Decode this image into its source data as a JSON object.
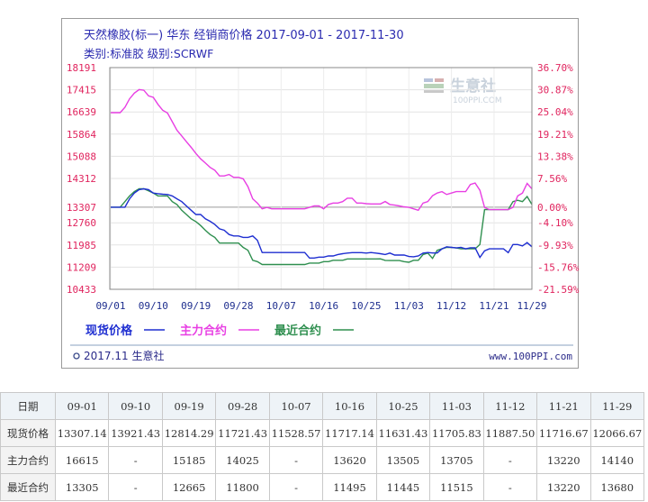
{
  "chart_data": {
    "type": "line",
    "title": "天然橡胶(标一) 华东 经销商价格 2017-09-01 - 2017-11-30",
    "subtitle": "类别:标准胶 级别:SCRWF",
    "watermark": {
      "name": "生意社",
      "url": "100PPI.COM"
    },
    "y_left_ticks": [
      18191,
      17415,
      16639,
      15864,
      15088,
      14312,
      13307,
      12760,
      11985,
      11209,
      10433
    ],
    "y_right_ticks": [
      "36.70%",
      "30.87%",
      "25.04%",
      "19.21%",
      "13.38%",
      "7.56%",
      "0.00%",
      "-4.10%",
      "-9.93%",
      "-15.76%",
      "-21.59%"
    ],
    "ylim": [
      10433,
      18191
    ],
    "baseline": 13307,
    "x_ticks": [
      "09/01",
      "09/10",
      "09/19",
      "09/28",
      "10/07",
      "10/16",
      "10/25",
      "11/03",
      "11/12",
      "11/21",
      "11/29"
    ],
    "x_range_days": [
      0,
      89
    ],
    "legend": [
      "现货价格",
      "主力合约",
      "最近合约"
    ],
    "series": [
      {
        "name": "现货价格",
        "color": "#1f2fd1",
        "points": [
          [
            0,
            13307
          ],
          [
            1,
            13307
          ],
          [
            2,
            13307
          ],
          [
            3,
            13307
          ],
          [
            4,
            13600
          ],
          [
            5,
            13800
          ],
          [
            6,
            13921
          ],
          [
            7,
            13950
          ],
          [
            8,
            13921
          ],
          [
            9,
            13800
          ],
          [
            10,
            13780
          ],
          [
            11,
            13760
          ],
          [
            12,
            13750
          ],
          [
            13,
            13700
          ],
          [
            14,
            13600
          ],
          [
            15,
            13500
          ],
          [
            16,
            13350
          ],
          [
            17,
            13200
          ],
          [
            18,
            13050
          ],
          [
            19,
            13050
          ],
          [
            20,
            12900
          ],
          [
            21,
            12814
          ],
          [
            22,
            12700
          ],
          [
            23,
            12550
          ],
          [
            24,
            12500
          ],
          [
            25,
            12350
          ],
          [
            26,
            12300
          ],
          [
            27,
            12300
          ],
          [
            28,
            12250
          ],
          [
            29,
            12250
          ],
          [
            30,
            12300
          ],
          [
            31,
            12150
          ],
          [
            32,
            11721
          ],
          [
            33,
            11721
          ],
          [
            34,
            11721
          ],
          [
            35,
            11721
          ],
          [
            36,
            11721
          ],
          [
            37,
            11721
          ],
          [
            38,
            11721
          ],
          [
            39,
            11721
          ],
          [
            40,
            11721
          ],
          [
            41,
            11721
          ],
          [
            42,
            11528
          ],
          [
            43,
            11528
          ],
          [
            44,
            11560
          ],
          [
            45,
            11560
          ],
          [
            46,
            11600
          ],
          [
            47,
            11600
          ],
          [
            48,
            11650
          ],
          [
            49,
            11680
          ],
          [
            50,
            11700
          ],
          [
            51,
            11717
          ],
          [
            52,
            11717
          ],
          [
            53,
            11717
          ],
          [
            54,
            11700
          ],
          [
            55,
            11720
          ],
          [
            56,
            11700
          ],
          [
            57,
            11680
          ],
          [
            58,
            11650
          ],
          [
            59,
            11700
          ],
          [
            60,
            11631
          ],
          [
            61,
            11631
          ],
          [
            62,
            11631
          ],
          [
            63,
            11580
          ],
          [
            64,
            11570
          ],
          [
            65,
            11600
          ],
          [
            66,
            11700
          ],
          [
            67,
            11720
          ],
          [
            68,
            11705
          ],
          [
            69,
            11705
          ],
          [
            70,
            11850
          ],
          [
            71,
            11920
          ],
          [
            72,
            11900
          ],
          [
            73,
            11880
          ],
          [
            74,
            11900
          ],
          [
            75,
            11850
          ],
          [
            76,
            11887
          ],
          [
            77,
            11887
          ],
          [
            78,
            11550
          ],
          [
            79,
            11780
          ],
          [
            80,
            11850
          ],
          [
            81,
            11850
          ],
          [
            82,
            11850
          ],
          [
            83,
            11850
          ],
          [
            84,
            11716
          ],
          [
            85,
            12000
          ],
          [
            86,
            12000
          ],
          [
            87,
            11950
          ],
          [
            88,
            12066
          ],
          [
            89,
            11920
          ]
        ]
      },
      {
        "name": "主力合约",
        "color": "#e83fe3",
        "points": [
          [
            0,
            16615
          ],
          [
            1,
            16615
          ],
          [
            2,
            16615
          ],
          [
            3,
            16800
          ],
          [
            4,
            17100
          ],
          [
            5,
            17300
          ],
          [
            6,
            17420
          ],
          [
            7,
            17400
          ],
          [
            8,
            17200
          ],
          [
            9,
            17150
          ],
          [
            10,
            16900
          ],
          [
            11,
            16700
          ],
          [
            12,
            16600
          ],
          [
            13,
            16300
          ],
          [
            14,
            16000
          ],
          [
            15,
            15800
          ],
          [
            16,
            15600
          ],
          [
            17,
            15400
          ],
          [
            18,
            15185
          ],
          [
            19,
            15000
          ],
          [
            20,
            14850
          ],
          [
            21,
            14700
          ],
          [
            22,
            14600
          ],
          [
            23,
            14400
          ],
          [
            24,
            14400
          ],
          [
            25,
            14450
          ],
          [
            26,
            14350
          ],
          [
            27,
            14350
          ],
          [
            28,
            14300
          ],
          [
            29,
            14025
          ],
          [
            30,
            13600
          ],
          [
            31,
            13450
          ],
          [
            32,
            13250
          ],
          [
            33,
            13300
          ],
          [
            34,
            13250
          ],
          [
            35,
            13250
          ],
          [
            36,
            13250
          ],
          [
            37,
            13250
          ],
          [
            38,
            13250
          ],
          [
            39,
            13250
          ],
          [
            40,
            13250
          ],
          [
            41,
            13250
          ],
          [
            42,
            13300
          ],
          [
            43,
            13350
          ],
          [
            44,
            13350
          ],
          [
            45,
            13250
          ],
          [
            46,
            13400
          ],
          [
            47,
            13450
          ],
          [
            48,
            13450
          ],
          [
            49,
            13500
          ],
          [
            50,
            13620
          ],
          [
            51,
            13620
          ],
          [
            52,
            13450
          ],
          [
            53,
            13450
          ],
          [
            54,
            13430
          ],
          [
            55,
            13420
          ],
          [
            56,
            13420
          ],
          [
            57,
            13420
          ],
          [
            58,
            13505
          ],
          [
            59,
            13400
          ],
          [
            60,
            13380
          ],
          [
            61,
            13350
          ],
          [
            62,
            13320
          ],
          [
            63,
            13300
          ],
          [
            64,
            13250
          ],
          [
            65,
            13200
          ],
          [
            66,
            13450
          ],
          [
            67,
            13500
          ],
          [
            68,
            13705
          ],
          [
            69,
            13800
          ],
          [
            70,
            13850
          ],
          [
            71,
            13750
          ],
          [
            72,
            13800
          ],
          [
            73,
            13850
          ],
          [
            74,
            13850
          ],
          [
            75,
            13850
          ],
          [
            76,
            14100
          ],
          [
            77,
            14150
          ],
          [
            78,
            13900
          ],
          [
            79,
            13300
          ],
          [
            80,
            13220
          ],
          [
            81,
            13220
          ],
          [
            82,
            13220
          ],
          [
            83,
            13220
          ],
          [
            84,
            13220
          ],
          [
            85,
            13300
          ],
          [
            86,
            13700
          ],
          [
            87,
            13800
          ],
          [
            88,
            14140
          ],
          [
            89,
            13950
          ]
        ]
      },
      {
        "name": "最近合约",
        "color": "#2f8f4f",
        "points": [
          [
            0,
            13305
          ],
          [
            1,
            13305
          ],
          [
            2,
            13305
          ],
          [
            3,
            13500
          ],
          [
            4,
            13700
          ],
          [
            5,
            13850
          ],
          [
            6,
            13950
          ],
          [
            7,
            13950
          ],
          [
            8,
            13880
          ],
          [
            9,
            13800
          ],
          [
            10,
            13700
          ],
          [
            11,
            13700
          ],
          [
            12,
            13700
          ],
          [
            13,
            13500
          ],
          [
            14,
            13400
          ],
          [
            15,
            13200
          ],
          [
            16,
            13050
          ],
          [
            17,
            12900
          ],
          [
            18,
            12800
          ],
          [
            19,
            12665
          ],
          [
            20,
            12500
          ],
          [
            21,
            12350
          ],
          [
            22,
            12250
          ],
          [
            23,
            12050
          ],
          [
            24,
            12050
          ],
          [
            25,
            12050
          ],
          [
            26,
            12050
          ],
          [
            27,
            12050
          ],
          [
            28,
            11900
          ],
          [
            29,
            11800
          ],
          [
            30,
            11450
          ],
          [
            31,
            11400
          ],
          [
            32,
            11300
          ],
          [
            33,
            11300
          ],
          [
            34,
            11300
          ],
          [
            35,
            11300
          ],
          [
            36,
            11300
          ],
          [
            37,
            11300
          ],
          [
            38,
            11300
          ],
          [
            39,
            11300
          ],
          [
            40,
            11300
          ],
          [
            41,
            11300
          ],
          [
            42,
            11350
          ],
          [
            43,
            11350
          ],
          [
            44,
            11350
          ],
          [
            45,
            11400
          ],
          [
            46,
            11400
          ],
          [
            47,
            11450
          ],
          [
            48,
            11450
          ],
          [
            49,
            11450
          ],
          [
            50,
            11495
          ],
          [
            51,
            11495
          ],
          [
            52,
            11495
          ],
          [
            53,
            11495
          ],
          [
            54,
            11495
          ],
          [
            55,
            11495
          ],
          [
            56,
            11495
          ],
          [
            57,
            11500
          ],
          [
            58,
            11445
          ],
          [
            59,
            11440
          ],
          [
            60,
            11440
          ],
          [
            61,
            11440
          ],
          [
            62,
            11400
          ],
          [
            63,
            11380
          ],
          [
            64,
            11450
          ],
          [
            65,
            11450
          ],
          [
            66,
            11650
          ],
          [
            67,
            11700
          ],
          [
            68,
            11515
          ],
          [
            69,
            11800
          ],
          [
            70,
            11850
          ],
          [
            71,
            11900
          ],
          [
            72,
            11900
          ],
          [
            73,
            11880
          ],
          [
            74,
            11850
          ],
          [
            75,
            11850
          ],
          [
            76,
            11850
          ],
          [
            77,
            11850
          ],
          [
            78,
            12000
          ],
          [
            79,
            13220
          ],
          [
            80,
            13220
          ],
          [
            81,
            13220
          ],
          [
            82,
            13220
          ],
          [
            83,
            13220
          ],
          [
            84,
            13220
          ],
          [
            85,
            13500
          ],
          [
            86,
            13550
          ],
          [
            87,
            13500
          ],
          [
            88,
            13680
          ],
          [
            89,
            13400
          ]
        ]
      }
    ]
  },
  "footer": {
    "left": "2017.11 生意社",
    "right": "www.100PPI.com"
  },
  "table": {
    "headers": [
      "日期",
      "09-01",
      "09-10",
      "09-19",
      "09-28",
      "10-07",
      "10-16",
      "10-25",
      "11-03",
      "11-12",
      "11-21",
      "11-29"
    ],
    "rows": [
      [
        "现货价格",
        "13307.14",
        "13921.43",
        "12814.29",
        "11721.43",
        "11528.57",
        "11717.14",
        "11631.43",
        "11705.83",
        "11887.50",
        "11716.67",
        "12066.67"
      ],
      [
        "主力合约",
        "16615",
        "-",
        "15185",
        "14025",
        "-",
        "13620",
        "13505",
        "13705",
        "-",
        "13220",
        "14140"
      ],
      [
        "最近合约",
        "13305",
        "-",
        "12665",
        "11800",
        "-",
        "11495",
        "11445",
        "11515",
        "-",
        "13220",
        "13680"
      ]
    ]
  }
}
